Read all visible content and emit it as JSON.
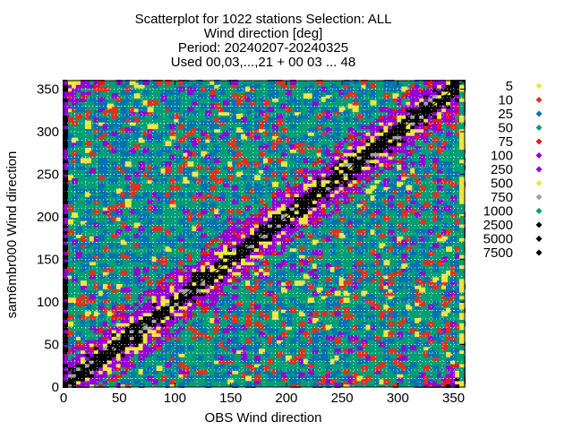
{
  "chart_data": {
    "type": "scatter",
    "title_lines": [
      "Scatterplot for 1022 stations Selection: ALL",
      "Wind direction [deg]",
      "Period: 20240207-20240325",
      "Used 00,03,...,21 + 00 03 ... 48"
    ],
    "xlabel": "OBS Wind direction",
    "ylabel": "sam6mbr000 Wind direction",
    "xlim": [
      0,
      360
    ],
    "ylim": [
      0,
      360
    ],
    "xticks": [
      0,
      50,
      100,
      150,
      200,
      250,
      300,
      350
    ],
    "yticks": [
      0,
      50,
      100,
      150,
      200,
      250,
      300,
      350
    ],
    "grid": true,
    "diagonal_line": true,
    "legend_position": "right",
    "legend": [
      {
        "label": "5",
        "color": "#f0e442"
      },
      {
        "label": "10",
        "color": "#e0301e"
      },
      {
        "label": "25",
        "color": "#0072b2"
      },
      {
        "label": "50",
        "color": "#009e73"
      },
      {
        "label": "75",
        "color": "#e41a1c"
      },
      {
        "label": "100",
        "color": "#9400d3"
      },
      {
        "label": "250",
        "color": "#9400d3"
      },
      {
        "label": "500",
        "color": "#f0e442"
      },
      {
        "label": "750",
        "color": "#a0a0a0"
      },
      {
        "label": "1000",
        "color": "#009e73"
      },
      {
        "label": "2500",
        "color": "#000000"
      },
      {
        "label": "5000",
        "color": "#000000"
      },
      {
        "label": "7500",
        "color": "#000000"
      }
    ]
  }
}
